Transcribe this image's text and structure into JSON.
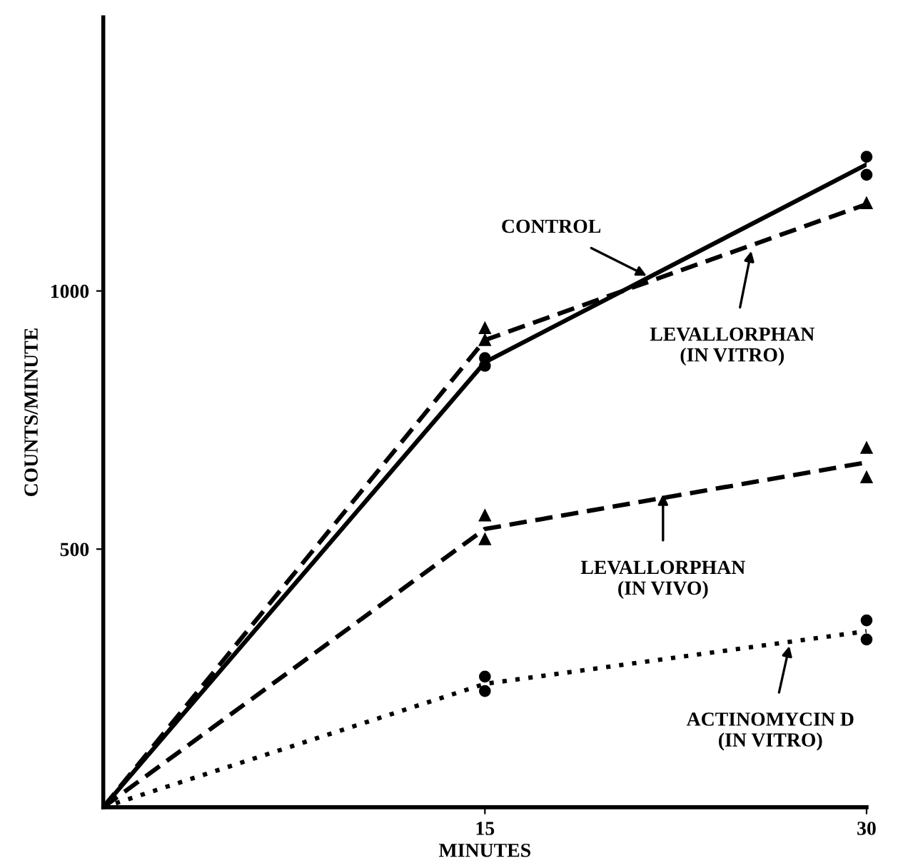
{
  "chart_data": {
    "type": "line",
    "xlabel": "MINUTES",
    "ylabel": "COUNTS/MINUTE",
    "x": [
      0,
      15,
      30
    ],
    "xlim": [
      0,
      30
    ],
    "xticks": [
      15,
      30
    ],
    "ylim": [
      0,
      1530
    ],
    "yticks": [
      500,
      1000
    ],
    "grid": false,
    "legend": false,
    "series": [
      {
        "color": "#000000",
        "line_style": "solid",
        "marker": "none",
        "values": [
          0,
          862,
          1245
        ]
      },
      {
        "color": "#000000",
        "line_style": "dashed",
        "marker": "none",
        "values": [
          0,
          905,
          1168
        ]
      },
      {
        "color": "#000000",
        "line_style": "dashed",
        "marker": "none",
        "values": [
          0,
          539,
          668
        ]
      },
      {
        "color": "#000000",
        "line_style": "dotted",
        "marker": "none",
        "values": [
          0,
          239,
          341
        ]
      },
      {
        "type": "scatter",
        "color": "#000000",
        "marker": "circle",
        "values": [
          null,
          855,
          1225
        ]
      },
      {
        "type": "scatter",
        "color": "#000000",
        "marker": "circle",
        "values": [
          null,
          870,
          1260
        ]
      },
      {
        "type": "scatter",
        "color": "#000000",
        "marker": "triangle",
        "values": [
          null,
          928,
          1170
        ]
      },
      {
        "type": "scatter",
        "color": "#000000",
        "marker": "triangle",
        "values": [
          null,
          905,
          null
        ]
      },
      {
        "type": "scatter",
        "color": "#000000",
        "marker": "triangle",
        "values": [
          null,
          565,
          696
        ]
      },
      {
        "type": "scatter",
        "color": "#000000",
        "marker": "triangle",
        "values": [
          null,
          519,
          639
        ]
      },
      {
        "type": "scatter",
        "color": "#000000",
        "marker": "circle",
        "values": [
          null,
          253,
          362
        ]
      },
      {
        "type": "scatter",
        "color": "#000000",
        "marker": "circle",
        "values": [
          null,
          225,
          325
        ]
      }
    ],
    "annotations": [
      {
        "text": "CONTROL",
        "x": 21.5,
        "y": 1026
      },
      {
        "text": "LEVALLORPHAN\n(IN VITRO)",
        "x": 25.5,
        "y": 1085
      },
      {
        "text": "LEVALLORPHAN\n(IN VIVO)",
        "x": 22,
        "y": 614
      },
      {
        "text": "ACTINOMYCIN D\n(IN VITRO)",
        "x": 27,
        "y": 320
      }
    ]
  }
}
